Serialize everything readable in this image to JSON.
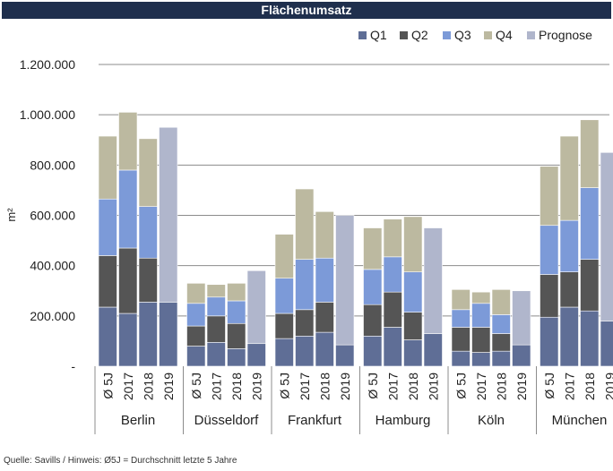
{
  "title": "Flächenumsatz",
  "source_note": "Quelle: Savills / Hinweis: Ø5J = Durchschnitt letzte 5 Jahre",
  "chart_data": {
    "type": "bar",
    "stacked": true,
    "title": "Flächenumsatz",
    "ylabel": "m²",
    "ylim": [
      0,
      1200000
    ],
    "yticks": [
      "-",
      "200.000",
      "400.000",
      "600.000",
      "800.000",
      "1.000.000",
      "1.200.000"
    ],
    "grid": true,
    "legend_position": "top-right",
    "groups": [
      "Berlin",
      "Düsseldorf",
      "Frankfurt",
      "Hamburg",
      "Köln",
      "München"
    ],
    "categories": [
      "Ø 5J",
      "2017",
      "2018",
      "2019"
    ],
    "colors": {
      "Q1": "#5f6e96",
      "Q2": "#555555",
      "Q3": "#7c9ad8",
      "Q4": "#bcb9a0",
      "Prognose": "#b0b6cc"
    },
    "series": [
      {
        "name": "Q1",
        "values": [
          [
            235000,
            210000,
            255000,
            255000
          ],
          [
            80000,
            95000,
            70000,
            90000
          ],
          [
            110000,
            120000,
            135000,
            85000
          ],
          [
            120000,
            155000,
            105000,
            130000
          ],
          [
            60000,
            55000,
            60000,
            85000
          ],
          [
            195000,
            235000,
            220000,
            180000
          ]
        ]
      },
      {
        "name": "Q2",
        "values": [
          [
            205000,
            260000,
            175000,
            0
          ],
          [
            80000,
            105000,
            100000,
            0
          ],
          [
            100000,
            105000,
            120000,
            0
          ],
          [
            125000,
            140000,
            110000,
            0
          ],
          [
            95000,
            100000,
            70000,
            0
          ],
          [
            170000,
            140000,
            205000,
            0
          ]
        ]
      },
      {
        "name": "Q3",
        "values": [
          [
            225000,
            310000,
            205000,
            0
          ],
          [
            90000,
            75000,
            90000,
            0
          ],
          [
            140000,
            200000,
            175000,
            0
          ],
          [
            140000,
            140000,
            160000,
            0
          ],
          [
            70000,
            95000,
            75000,
            0
          ],
          [
            195000,
            205000,
            285000,
            0
          ]
        ]
      },
      {
        "name": "Q4",
        "values": [
          [
            250000,
            230000,
            270000,
            0
          ],
          [
            80000,
            50000,
            70000,
            0
          ],
          [
            175000,
            280000,
            185000,
            0
          ],
          [
            165000,
            150000,
            220000,
            0
          ],
          [
            80000,
            45000,
            100000,
            0
          ],
          [
            235000,
            335000,
            270000,
            0
          ]
        ]
      },
      {
        "name": "Prognose",
        "values": [
          [
            0,
            0,
            0,
            695000
          ],
          [
            0,
            0,
            0,
            290000
          ],
          [
            0,
            0,
            0,
            515000
          ],
          [
            0,
            0,
            0,
            420000
          ],
          [
            0,
            0,
            0,
            215000
          ],
          [
            0,
            0,
            0,
            670000
          ]
        ]
      }
    ]
  }
}
